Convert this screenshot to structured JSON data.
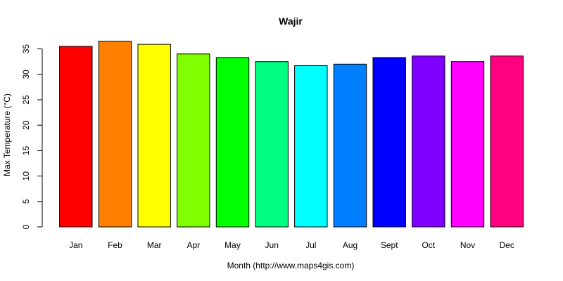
{
  "chart_data": {
    "type": "bar",
    "title": "Wajir",
    "xlabel": "Month (http://www.maps4gis.com)",
    "ylabel": "Max Temperature (°C)",
    "categories": [
      "Jan",
      "Feb",
      "Mar",
      "Apr",
      "May",
      "Jun",
      "Jul",
      "Aug",
      "Sept",
      "Oct",
      "Nov",
      "Dec"
    ],
    "values": [
      35.5,
      36.5,
      35.9,
      34.0,
      33.3,
      32.5,
      31.7,
      32.0,
      33.3,
      33.6,
      32.5,
      33.6
    ],
    "colors": [
      "#ff0000",
      "#ff8000",
      "#ffff00",
      "#80ff00",
      "#00ff00",
      "#00ff80",
      "#00ffff",
      "#0080ff",
      "#0000ff",
      "#8000ff",
      "#ff00ff",
      "#ff0080"
    ],
    "ylim": [
      0,
      35
    ],
    "yticks": [
      0,
      5,
      10,
      15,
      20,
      25,
      30,
      35
    ],
    "grid": false,
    "legend": "none"
  }
}
